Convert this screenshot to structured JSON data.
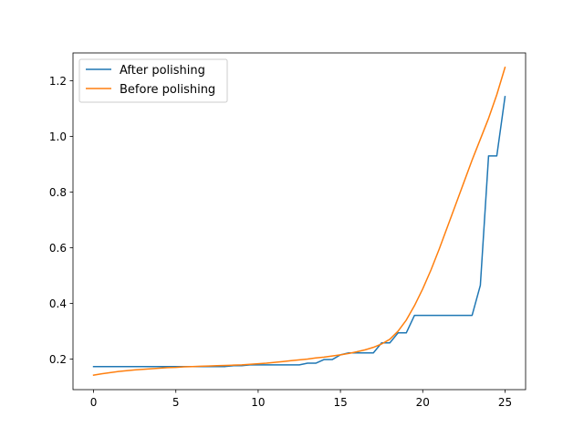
{
  "chart_data": {
    "type": "line",
    "title": "",
    "xlabel": "",
    "ylabel": "",
    "xlim": [
      -1.25,
      26.25
    ],
    "ylim": [
      0.09,
      1.3
    ],
    "xticks": [
      0,
      5,
      10,
      15,
      20,
      25
    ],
    "yticks": [
      0.2,
      0.4,
      0.6,
      0.8,
      1.0,
      1.2
    ],
    "xtick_labels": [
      "0",
      "5",
      "10",
      "15",
      "20",
      "25"
    ],
    "ytick_labels": [
      "0.2",
      "0.4",
      "0.6",
      "0.8",
      "1.0",
      "1.2"
    ],
    "grid": false,
    "legend_position": "upper-left",
    "series": [
      {
        "name": "After polishing",
        "color": "#1f77b4",
        "x": [
          0,
          0.5,
          1,
          1.5,
          2,
          2.5,
          3,
          3.5,
          4,
          4.5,
          5,
          5.5,
          6,
          6.5,
          7,
          7.5,
          8,
          8.5,
          9,
          9.5,
          10,
          10.5,
          11,
          11.5,
          12,
          12.5,
          13,
          13.5,
          14,
          14.5,
          15,
          15.5,
          16,
          16.5,
          17,
          17.5,
          18,
          18.5,
          19,
          19.5,
          20,
          20.5,
          21,
          21.5,
          22,
          22.5,
          23,
          23.5,
          24,
          24.5,
          25
        ],
        "y": [
          0.173,
          0.173,
          0.173,
          0.173,
          0.173,
          0.173,
          0.173,
          0.173,
          0.173,
          0.173,
          0.173,
          0.173,
          0.173,
          0.173,
          0.173,
          0.173,
          0.173,
          0.176,
          0.176,
          0.179,
          0.179,
          0.179,
          0.179,
          0.179,
          0.179,
          0.179,
          0.185,
          0.185,
          0.198,
          0.198,
          0.215,
          0.222,
          0.222,
          0.222,
          0.222,
          0.258,
          0.258,
          0.294,
          0.294,
          0.357,
          0.357,
          0.357,
          0.357,
          0.357,
          0.357,
          0.357,
          0.357,
          0.465,
          0.93,
          0.93,
          1.143
        ]
      },
      {
        "name": "Before polishing",
        "color": "#ff7f0e",
        "x": [
          0,
          0.5,
          1,
          1.5,
          2,
          2.5,
          3,
          3.5,
          4,
          4.5,
          5,
          5.5,
          6,
          6.5,
          7,
          7.5,
          8,
          8.5,
          9,
          9.5,
          10,
          10.5,
          11,
          11.5,
          12,
          12.5,
          13,
          13.5,
          14,
          14.5,
          15,
          15.5,
          16,
          16.5,
          17,
          17.5,
          18,
          18.5,
          19,
          19.5,
          20,
          20.5,
          21,
          21.5,
          22,
          22.5,
          23,
          23.5,
          24,
          24.5,
          25
        ],
        "y": [
          0.142,
          0.147,
          0.151,
          0.155,
          0.158,
          0.161,
          0.163,
          0.165,
          0.167,
          0.169,
          0.17,
          0.172,
          0.173,
          0.174,
          0.175,
          0.176,
          0.177,
          0.178,
          0.179,
          0.181,
          0.183,
          0.185,
          0.188,
          0.191,
          0.194,
          0.197,
          0.2,
          0.204,
          0.207,
          0.211,
          0.215,
          0.22,
          0.226,
          0.233,
          0.242,
          0.254,
          0.271,
          0.3,
          0.34,
          0.392,
          0.452,
          0.52,
          0.595,
          0.675,
          0.755,
          0.835,
          0.915,
          0.99,
          1.065,
          1.15,
          1.248
        ]
      }
    ]
  }
}
